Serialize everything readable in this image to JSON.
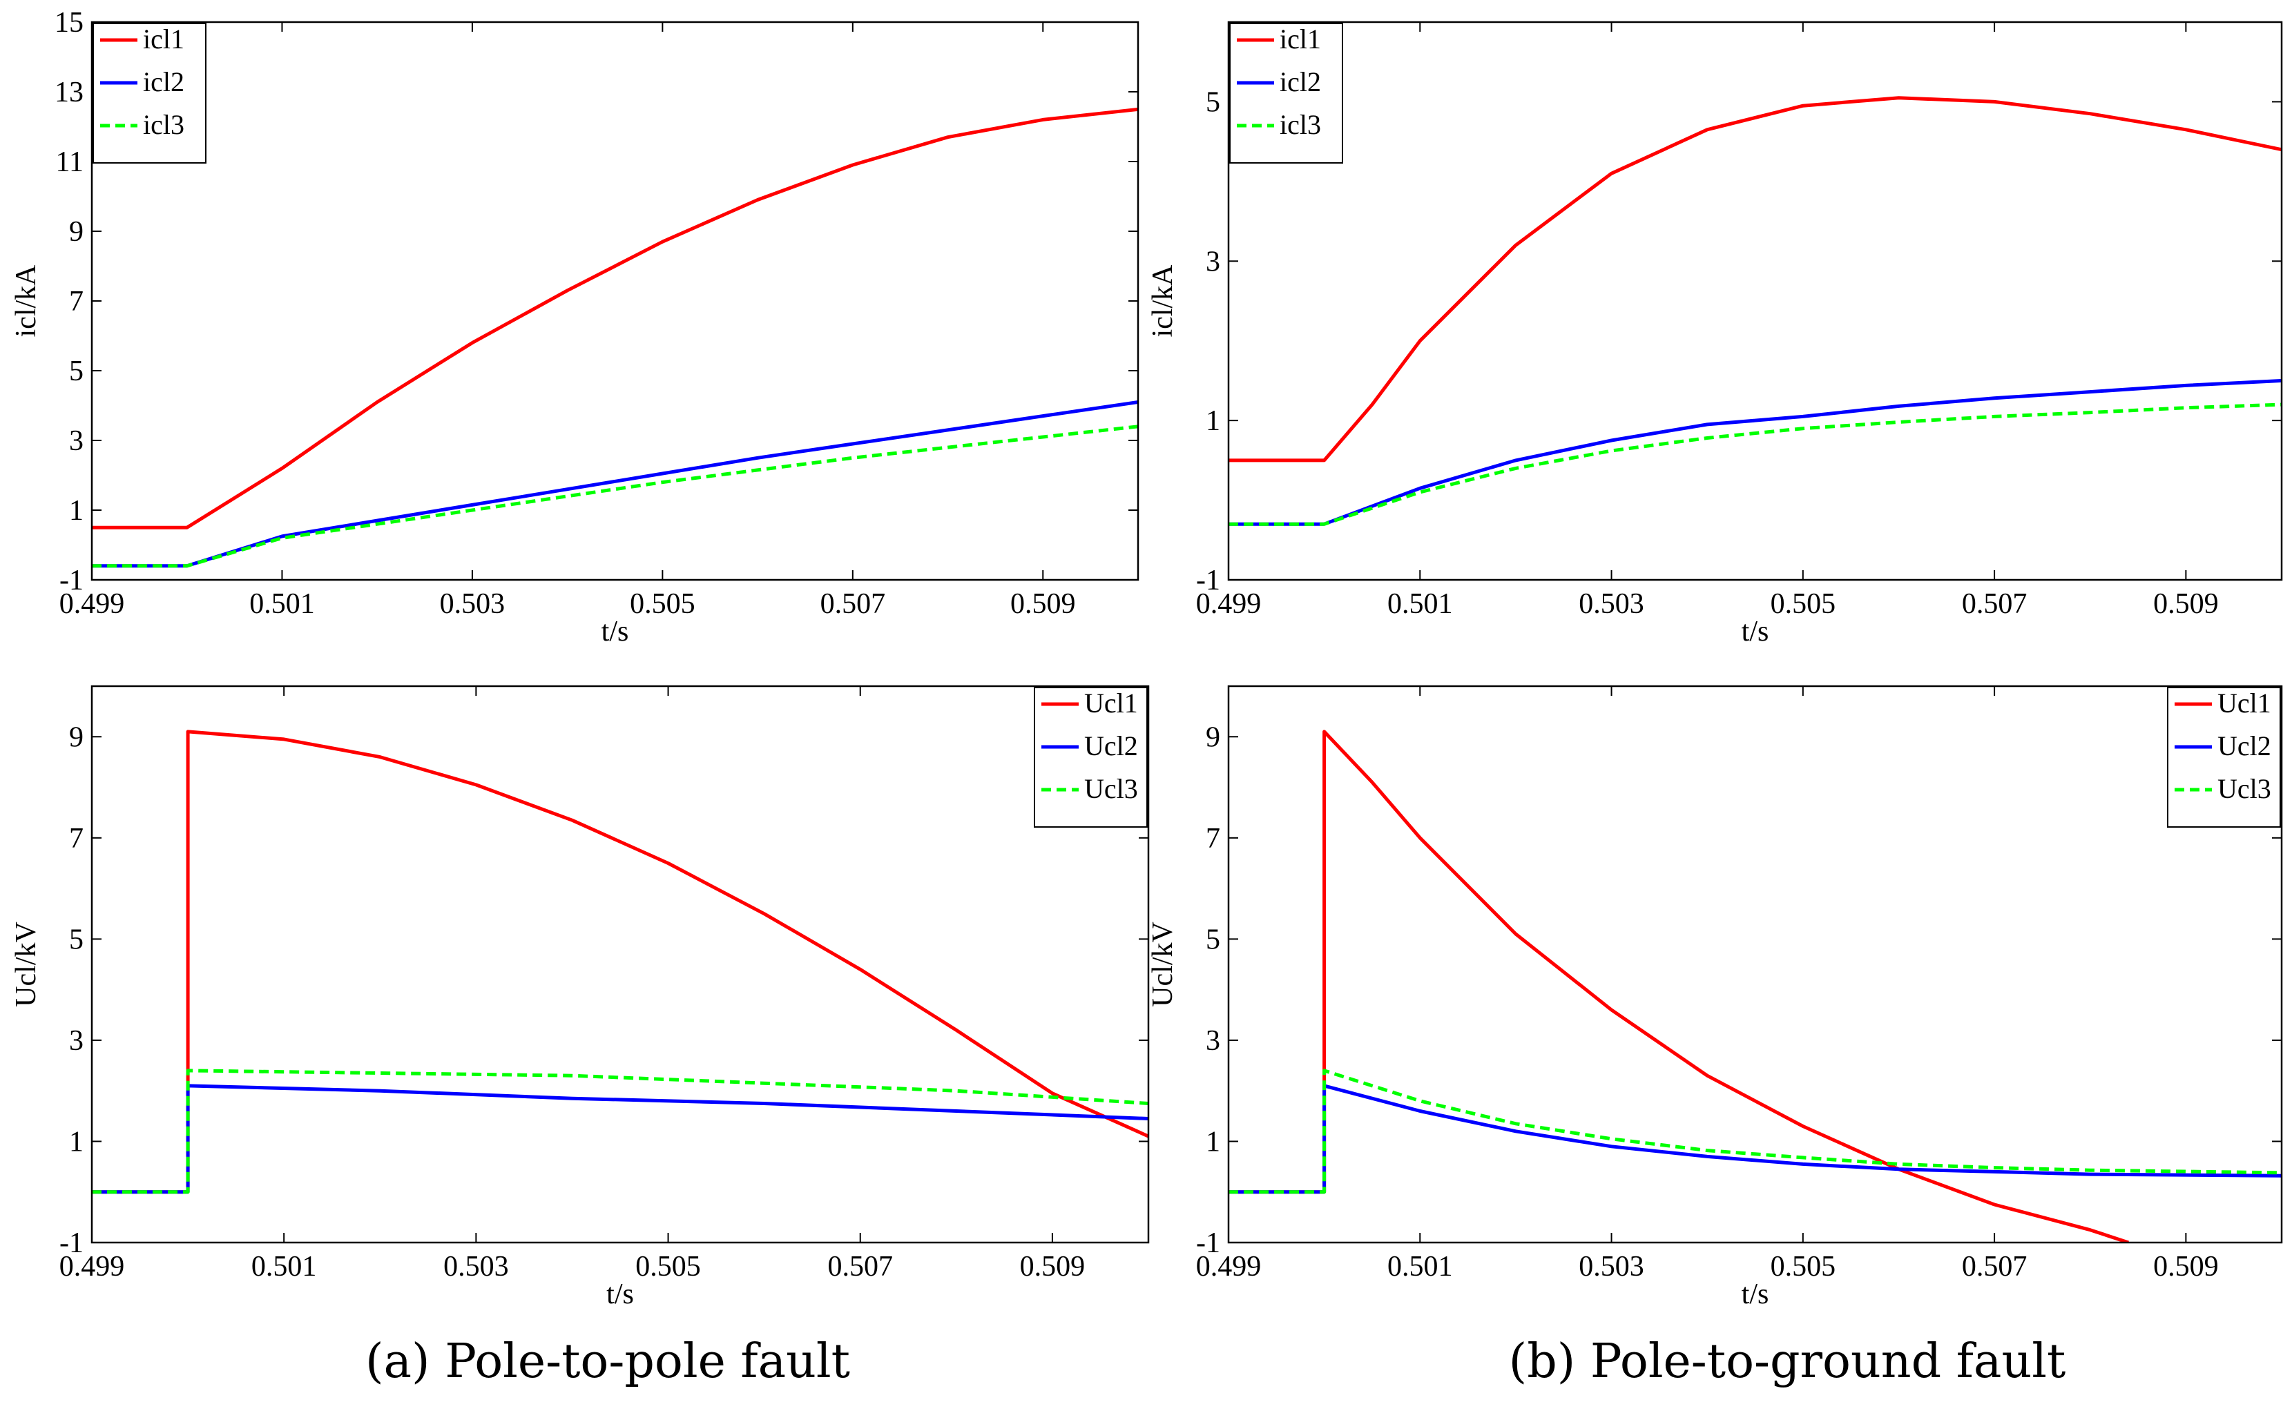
{
  "colors": {
    "red": "#ff0000",
    "blue": "#0000ff",
    "green": "#00ff00",
    "axis": "#000000"
  },
  "captions": [
    "(a)  Pole-to-pole fault",
    "(b)  Pole-to-ground fault"
  ],
  "chart_data": [
    {
      "id": "a-current",
      "type": "line",
      "xlabel": "t/s",
      "ylabel": "icl/kA",
      "xlim": [
        0.499,
        0.51
      ],
      "ylim": [
        -1,
        15
      ],
      "xticks": [
        0.499,
        0.501,
        0.503,
        0.505,
        0.507,
        0.509
      ],
      "xtick_labels": [
        "0.499",
        "0.501",
        "0.503",
        "0.505",
        "0.507",
        "0.509"
      ],
      "yticks": [
        -1,
        1,
        3,
        5,
        7,
        9,
        11,
        13,
        15
      ],
      "ytick_labels": [
        "-1",
        "1",
        "3",
        "5",
        "7",
        "9",
        "11",
        "13",
        "15"
      ],
      "legend_position": "top-left",
      "series": [
        {
          "name": "icl1",
          "color": "red",
          "dash": false,
          "points": [
            [
              0.499,
              0.5
            ],
            [
              0.5,
              0.5
            ],
            [
              0.501,
              2.2
            ],
            [
              0.502,
              4.1
            ],
            [
              0.503,
              5.8
            ],
            [
              0.504,
              7.3
            ],
            [
              0.505,
              8.7
            ],
            [
              0.506,
              9.9
            ],
            [
              0.507,
              10.9
            ],
            [
              0.508,
              11.7
            ],
            [
              0.509,
              12.2
            ],
            [
              0.51,
              12.5
            ]
          ]
        },
        {
          "name": "icl2",
          "color": "blue",
          "dash": false,
          "points": [
            [
              0.499,
              -0.6
            ],
            [
              0.5,
              -0.6
            ],
            [
              0.501,
              0.25
            ],
            [
              0.502,
              0.7
            ],
            [
              0.503,
              1.15
            ],
            [
              0.504,
              1.6
            ],
            [
              0.505,
              2.05
            ],
            [
              0.506,
              2.5
            ],
            [
              0.507,
              2.9
            ],
            [
              0.508,
              3.3
            ],
            [
              0.509,
              3.7
            ],
            [
              0.51,
              4.1
            ]
          ]
        },
        {
          "name": "icl3",
          "color": "green",
          "dash": true,
          "points": [
            [
              0.499,
              -0.6
            ],
            [
              0.5,
              -0.6
            ],
            [
              0.501,
              0.2
            ],
            [
              0.502,
              0.6
            ],
            [
              0.503,
              1.0
            ],
            [
              0.504,
              1.4
            ],
            [
              0.505,
              1.8
            ],
            [
              0.506,
              2.15
            ],
            [
              0.507,
              2.5
            ],
            [
              0.508,
              2.8
            ],
            [
              0.509,
              3.1
            ],
            [
              0.51,
              3.4
            ]
          ]
        }
      ]
    },
    {
      "id": "b-current",
      "type": "line",
      "xlabel": "t/s",
      "ylabel": "icl/kA",
      "xlim": [
        0.499,
        0.51
      ],
      "ylim": [
        -1,
        6
      ],
      "xticks": [
        0.499,
        0.501,
        0.503,
        0.505,
        0.507,
        0.509
      ],
      "xtick_labels": [
        "0.499",
        "0.501",
        "0.503",
        "0.505",
        "0.507",
        "0.509"
      ],
      "yticks": [
        -1,
        1,
        3,
        5
      ],
      "ytick_labels": [
        "-1",
        "1",
        "3",
        "5"
      ],
      "legend_position": "top-left",
      "series": [
        {
          "name": "icl1",
          "color": "red",
          "dash": false,
          "points": [
            [
              0.499,
              0.5
            ],
            [
              0.5,
              0.5
            ],
            [
              0.5005,
              1.2
            ],
            [
              0.501,
              2.0
            ],
            [
              0.502,
              3.2
            ],
            [
              0.503,
              4.1
            ],
            [
              0.504,
              4.65
            ],
            [
              0.505,
              4.95
            ],
            [
              0.506,
              5.05
            ],
            [
              0.507,
              5.0
            ],
            [
              0.508,
              4.85
            ],
            [
              0.509,
              4.65
            ],
            [
              0.51,
              4.4
            ]
          ]
        },
        {
          "name": "icl2",
          "color": "blue",
          "dash": false,
          "points": [
            [
              0.499,
              -0.3
            ],
            [
              0.5,
              -0.3
            ],
            [
              0.501,
              0.15
            ],
            [
              0.502,
              0.5
            ],
            [
              0.503,
              0.75
            ],
            [
              0.504,
              0.95
            ],
            [
              0.505,
              1.05
            ],
            [
              0.506,
              1.18
            ],
            [
              0.507,
              1.28
            ],
            [
              0.508,
              1.36
            ],
            [
              0.509,
              1.44
            ],
            [
              0.51,
              1.5
            ]
          ]
        },
        {
          "name": "icl3",
          "color": "green",
          "dash": true,
          "points": [
            [
              0.499,
              -0.3
            ],
            [
              0.5,
              -0.3
            ],
            [
              0.501,
              0.1
            ],
            [
              0.502,
              0.4
            ],
            [
              0.503,
              0.62
            ],
            [
              0.504,
              0.78
            ],
            [
              0.505,
              0.9
            ],
            [
              0.506,
              0.98
            ],
            [
              0.507,
              1.05
            ],
            [
              0.508,
              1.1
            ],
            [
              0.509,
              1.16
            ],
            [
              0.51,
              1.2
            ]
          ]
        }
      ]
    },
    {
      "id": "a-voltage",
      "type": "line",
      "xlabel": "t/s",
      "ylabel": "Ucl/kV",
      "xlim": [
        0.499,
        0.51
      ],
      "ylim": [
        -1,
        10
      ],
      "xticks": [
        0.499,
        0.501,
        0.503,
        0.505,
        0.507,
        0.509
      ],
      "xtick_labels": [
        "0.499",
        "0.501",
        "0.503",
        "0.505",
        "0.507",
        "0.509"
      ],
      "yticks": [
        -1,
        1,
        3,
        5,
        7,
        9
      ],
      "ytick_labels": [
        "-1",
        "1",
        "3",
        "5",
        "7",
        "9"
      ],
      "legend_position": "top-right",
      "series": [
        {
          "name": "Ucl1",
          "color": "red",
          "dash": false,
          "points": [
            [
              0.499,
              0
            ],
            [
              0.5,
              0
            ],
            [
              0.5,
              9.1
            ],
            [
              0.501,
              8.95
            ],
            [
              0.502,
              8.6
            ],
            [
              0.503,
              8.05
            ],
            [
              0.504,
              7.35
            ],
            [
              0.505,
              6.5
            ],
            [
              0.506,
              5.5
            ],
            [
              0.507,
              4.4
            ],
            [
              0.508,
              3.2
            ],
            [
              0.509,
              1.95
            ],
            [
              0.51,
              1.1
            ]
          ]
        },
        {
          "name": "Ucl2",
          "color": "blue",
          "dash": false,
          "points": [
            [
              0.499,
              0
            ],
            [
              0.5,
              0
            ],
            [
              0.5,
              2.1
            ],
            [
              0.502,
              2.0
            ],
            [
              0.504,
              1.85
            ],
            [
              0.506,
              1.75
            ],
            [
              0.508,
              1.6
            ],
            [
              0.51,
              1.45
            ]
          ]
        },
        {
          "name": "Ucl3",
          "color": "green",
          "dash": true,
          "points": [
            [
              0.499,
              0
            ],
            [
              0.5,
              0
            ],
            [
              0.5,
              2.4
            ],
            [
              0.502,
              2.35
            ],
            [
              0.504,
              2.3
            ],
            [
              0.506,
              2.15
            ],
            [
              0.508,
              2.0
            ],
            [
              0.51,
              1.75
            ]
          ]
        }
      ]
    },
    {
      "id": "b-voltage",
      "type": "line",
      "xlabel": "t/s",
      "ylabel": "Ucl/kV",
      "xlim": [
        0.499,
        0.51
      ],
      "ylim": [
        -1,
        10
      ],
      "xticks": [
        0.499,
        0.501,
        0.503,
        0.505,
        0.507,
        0.509
      ],
      "xtick_labels": [
        "0.499",
        "0.501",
        "0.503",
        "0.505",
        "0.507",
        "0.509"
      ],
      "yticks": [
        -1,
        1,
        3,
        5,
        7,
        9
      ],
      "ytick_labels": [
        "-1",
        "1",
        "3",
        "5",
        "7",
        "9"
      ],
      "legend_position": "top-right",
      "series": [
        {
          "name": "Ucl1",
          "color": "red",
          "dash": false,
          "points": [
            [
              0.499,
              0
            ],
            [
              0.5,
              0
            ],
            [
              0.5,
              9.1
            ],
            [
              0.5005,
              8.1
            ],
            [
              0.501,
              7.0
            ],
            [
              0.502,
              5.1
            ],
            [
              0.503,
              3.6
            ],
            [
              0.504,
              2.3
            ],
            [
              0.505,
              1.3
            ],
            [
              0.506,
              0.45
            ],
            [
              0.507,
              -0.25
            ],
            [
              0.508,
              -0.75
            ],
            [
              0.5084,
              -1
            ]
          ]
        },
        {
          "name": "Ucl2",
          "color": "blue",
          "dash": false,
          "points": [
            [
              0.499,
              0
            ],
            [
              0.5,
              0
            ],
            [
              0.5,
              2.1
            ],
            [
              0.501,
              1.6
            ],
            [
              0.502,
              1.2
            ],
            [
              0.503,
              0.9
            ],
            [
              0.504,
              0.7
            ],
            [
              0.505,
              0.55
            ],
            [
              0.506,
              0.45
            ],
            [
              0.507,
              0.4
            ],
            [
              0.508,
              0.35
            ],
            [
              0.51,
              0.32
            ]
          ]
        },
        {
          "name": "Ucl3",
          "color": "green",
          "dash": true,
          "points": [
            [
              0.499,
              0
            ],
            [
              0.5,
              0
            ],
            [
              0.5,
              2.4
            ],
            [
              0.501,
              1.8
            ],
            [
              0.502,
              1.35
            ],
            [
              0.503,
              1.05
            ],
            [
              0.504,
              0.82
            ],
            [
              0.505,
              0.68
            ],
            [
              0.506,
              0.55
            ],
            [
              0.507,
              0.48
            ],
            [
              0.508,
              0.43
            ],
            [
              0.51,
              0.38
            ]
          ]
        }
      ]
    }
  ]
}
